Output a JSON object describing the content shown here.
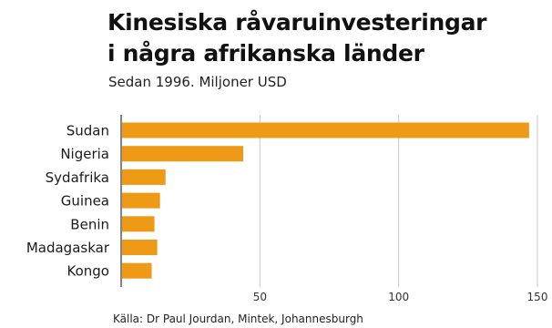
{
  "chart_data": {
    "type": "bar",
    "orientation": "horizontal",
    "title_lines": [
      "Kinesiska råvaruinvesteringar",
      "i några afrikanska länder"
    ],
    "subtitle": "Sedan 1996. Miljoner USD",
    "categories": [
      "Sudan",
      "Nigeria",
      "Sydafrika",
      "Guinea",
      "Benin",
      "Madagaskar",
      "Kongo"
    ],
    "values": [
      147,
      44,
      16,
      14,
      12,
      13,
      11
    ],
    "xlim": [
      0,
      150
    ],
    "x_ticks": [
      50,
      100,
      150
    ],
    "grid": true,
    "bar_color": "#ef9a17",
    "grid_color": "#c8c8c8",
    "axis_color": "#333333",
    "source": "Källa: Dr Paul Jourdan, Mintek, Johannesburgh"
  }
}
